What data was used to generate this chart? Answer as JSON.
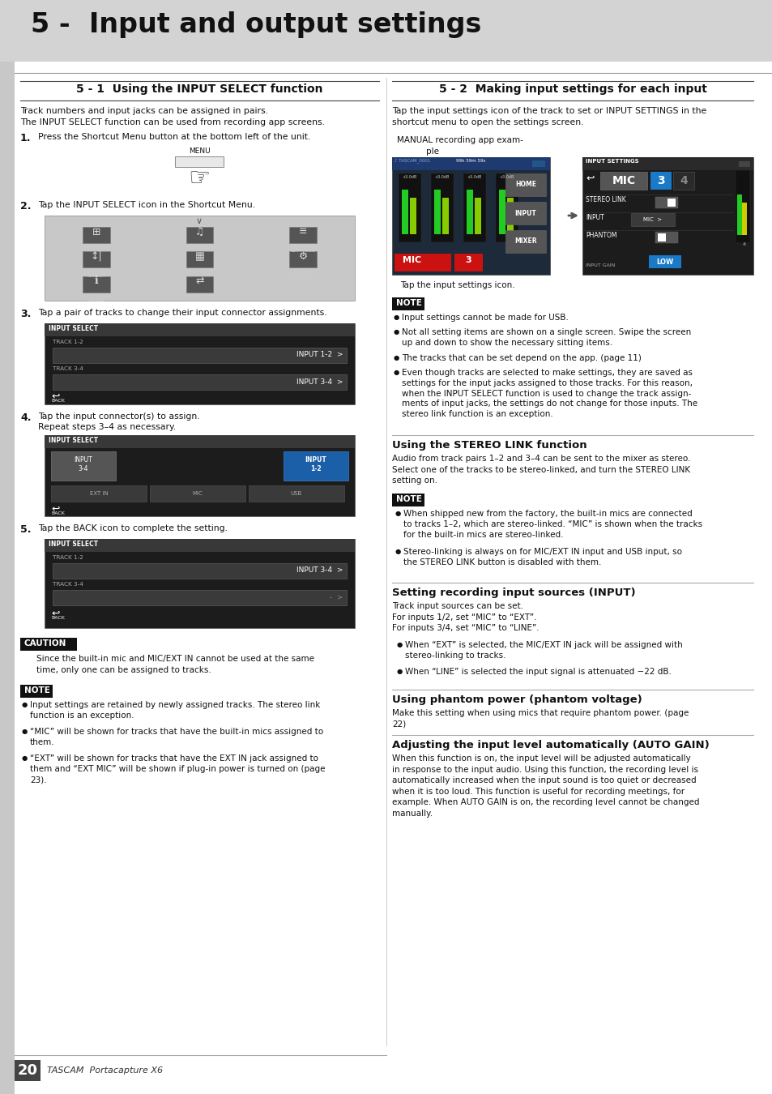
{
  "page_bg": "#ffffff",
  "header_bg": "#d3d3d3",
  "header_title": "5 -  Input and output settings",
  "section1_title": "5 - 1  Using the INPUT SELECT function",
  "section2_title": "5 - 2  Making input settings for each input",
  "section1_intro": "Track numbers and input jacks can be assigned in pairs.\nThe INPUT SELECT function can be used from recording app screens.",
  "step1_text": "Press the Shortcut Menu button at the bottom left of the unit.",
  "step2_text": "Tap the INPUT SELECT icon in the Shortcut Menu.",
  "step3_text": "Tap a pair of tracks to change their input connector assignments.",
  "step4_text": "Tap the input connector(s) to assign.\nRepeat steps 3–4 as necessary.",
  "step5_text": "Tap the BACK icon to complete the setting.",
  "caution_title": "CAUTION",
  "caution_body": "Since the built-in mic and MIC/EXT IN cannot be used at the same\ntime, only one can be assigned to tracks.",
  "note_title": "NOTE",
  "note_left": [
    "Input settings are retained by newly assigned tracks. The stereo link\nfunction is an exception.",
    "“MIC” will be shown for tracks that have the built-in mics assigned to\nthem.",
    "“EXT” will be shown for tracks that have the EXT IN jack assigned to\nthem and “EXT MIC” will be shown if plug-in power is turned on (page\n23)."
  ],
  "section2_intro": "Tap the input settings icon of the track to set or INPUT SETTINGS in the\nshortcut menu to open the settings screen.",
  "example_label1": "MANUAL recording app exam-",
  "example_label2": "ple",
  "tap_caption": "Tap the input settings icon.",
  "note2": [
    "Input settings cannot be made for USB.",
    "Not all setting items are shown on a single screen. Swipe the screen\nup and down to show the necessary sitting items.",
    "The tracks that can be set depend on the app. (page 11)",
    "Even though tracks are selected to make settings, they are saved as\nsettings for the input jacks assigned to those tracks. For this reason,\nwhen the INPUT SELECT function is used to change the track assign-\nments of input jacks, the settings do not change for those inputs. The\nstereo link function is an exception."
  ],
  "stereo_title": "Using the STEREO LINK function",
  "stereo_body": "Audio from track pairs 1–2 and 3–4 can be sent to the mixer as stereo.\nSelect one of the tracks to be stereo-linked, and turn the STEREO LINK\nsetting on.",
  "stereo_note": [
    "When shipped new from the factory, the built-in mics are connected\nto tracks 1–2, which are stereo-linked. “MIC” is shown when the tracks\nfor the built-in mics are stereo-linked.",
    "Stereo-linking is always on for MIC/EXT IN input and USB input, so\nthe STEREO LINK button is disabled with them."
  ],
  "input_src_title": "Setting recording input sources (INPUT)",
  "input_src_body": "Track input sources can be set.\nFor inputs 1/2, set “MIC” to “EXT”.\nFor inputs 3/4, set “MIC” to “LINE”.",
  "input_src_bullets": [
    "When “EXT” is selected, the MIC/EXT IN jack will be assigned with\nstereo-linking to tracks.",
    "When “LINE” is selected the input signal is attenuated −22 dB."
  ],
  "phantom_title": "Using phantom power (phantom voltage)",
  "phantom_body": "Make this setting when using mics that require phantom power. (page\n22)",
  "autogain_title": "Adjusting the input level automatically (AUTO GAIN)",
  "autogain_body": "When this function is on, the input level will be adjusted automatically\nin response to the input audio. Using this function, the recording level is\nautomatically increased when the input sound is too quiet or decreased\nwhen it is too loud. This function is useful for recording meetings, for\nexample. When AUTO GAIN is on, the recording level cannot be changed\nmanually.",
  "footer_num": "20",
  "footer_brand": "TASCAM  Portacapture X6"
}
